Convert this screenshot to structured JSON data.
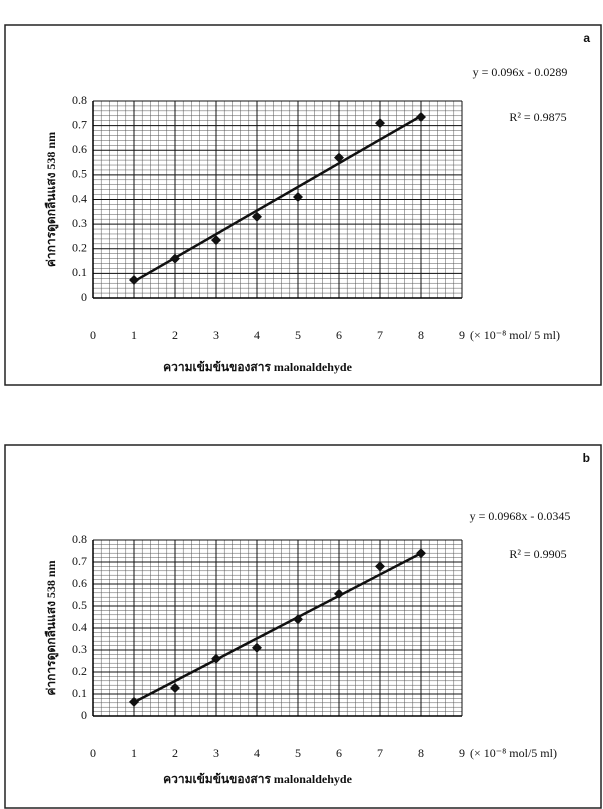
{
  "chart_data": [
    {
      "type": "scatter",
      "panel_label": "a",
      "equation": "y = 0.096x - 0.0289",
      "r_squared": "R² = 0.9875",
      "y_label": "ค่าการดูดกลืนแสง 538  nm",
      "x_label": "ความเข้มข้นของสาร malonaldehyde",
      "x_unit": "(× 10⁻⁸ mol/ 5 ml)",
      "x": [
        1,
        2,
        3,
        4,
        5,
        6,
        7,
        8
      ],
      "values": [
        0.073,
        0.16,
        0.235,
        0.33,
        0.41,
        0.57,
        0.71,
        0.735
      ],
      "trendline": {
        "x": [
          1,
          8
        ],
        "values": [
          0.0671,
          0.7391
        ]
      },
      "color": "#111111",
      "xlim": [
        0,
        9
      ],
      "xticks": [
        0,
        1,
        2,
        3,
        4,
        5,
        6,
        7,
        8,
        9
      ],
      "ylim": [
        0,
        0.8
      ],
      "yticks": [
        0,
        0.1,
        0.2,
        0.3,
        0.4,
        0.5,
        0.6,
        0.7,
        0.8
      ],
      "grid": true,
      "minor_grid": true
    },
    {
      "type": "scatter",
      "panel_label": "b",
      "equation": "y = 0.0968x - 0.0345",
      "r_squared": "R² = 0.9905",
      "y_label": "ค่าการดูดกลืนแสง 538  nm",
      "x_label": "ความเข้มข้นของสาร malonaldehyde",
      "x_unit": "(× 10⁻⁸ mol/5 ml)",
      "x": [
        1,
        2,
        3,
        4,
        5,
        6,
        7,
        8
      ],
      "values": [
        0.064,
        0.127,
        0.26,
        0.31,
        0.44,
        0.555,
        0.68,
        0.74
      ],
      "trendline": {
        "x": [
          1,
          8
        ],
        "values": [
          0.0623,
          0.7399
        ]
      },
      "color": "#111111",
      "xlim": [
        0,
        9
      ],
      "xticks": [
        0,
        1,
        2,
        3,
        4,
        5,
        6,
        7,
        8,
        9
      ],
      "ylim": [
        0,
        0.8
      ],
      "yticks": [
        0,
        0.1,
        0.2,
        0.3,
        0.4,
        0.5,
        0.6,
        0.7,
        0.8
      ],
      "grid": true,
      "minor_grid": true
    }
  ]
}
